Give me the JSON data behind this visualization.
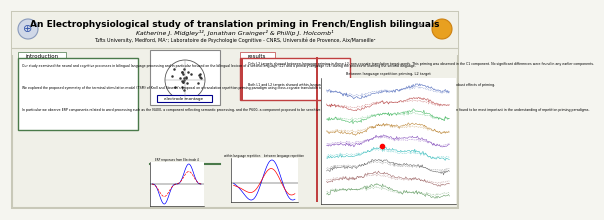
{
  "title": "An Electrophysiological study of translation priming in French/English bilinguals",
  "authors": "Katherine J. Midgley¹², Jonathan Grainger² & Phillip J. Holcomb¹",
  "affiliations": "Tufts University, Medford, MA¹; Laboratoire de Psychologie Cognitive - CNRS, Université de Provence, Aix/Marseille²",
  "bg_color": "#f5f5f0",
  "border_color": "#c8c8b8",
  "header_bg": "#f0f0e8",
  "title_color": "#000000",
  "section_intro_label": "introduction",
  "section_results_label": "results",
  "intro_border": "#4a7a4a",
  "results_border": "#c04040",
  "intro_text": "Our study examined the neural and cognitive processes in bilingual language processing and in particular focused on the bilingual lexicon of a second language (L2) and a primary language (L1) during the process of learning the second language.\n\nWe explored the proposed symmetry of the terminal stimulation model (TSM) of Kroll and Stewart's proposal on a translation repetition priming paradigm using cross-cognate translation target words.\n\nIn particular we observe ERP components related to word processing such as the N400, a component reflecting semantic processing, and the P600, a component proposed to be sensitive to orthographic processing (Grainger & Holcomb, 2009). Both components have been found to be most important in the understanding of repetition priming paradigms.",
  "results_text_1": "Only L2 targets showed between-language priming in these L2, non-cognate translation target words. This priming was observed in the C1 component. No significant differences were found in any earlier components.",
  "results_text_2": "Both L1 and L2 targets showed within-language repetition priming in both the N400 and the P600 windows. About L2 there were robust effects of priming.",
  "electrode_label": "electrode montage",
  "electrode_border": "#00008b",
  "small_graph_label": "ERP responses from Electrode 4",
  "within_lang_label": "within language repetition",
  "between_lang_label": "between language repetition",
  "main_graph_label": "Between language repetition priming, L2 target"
}
